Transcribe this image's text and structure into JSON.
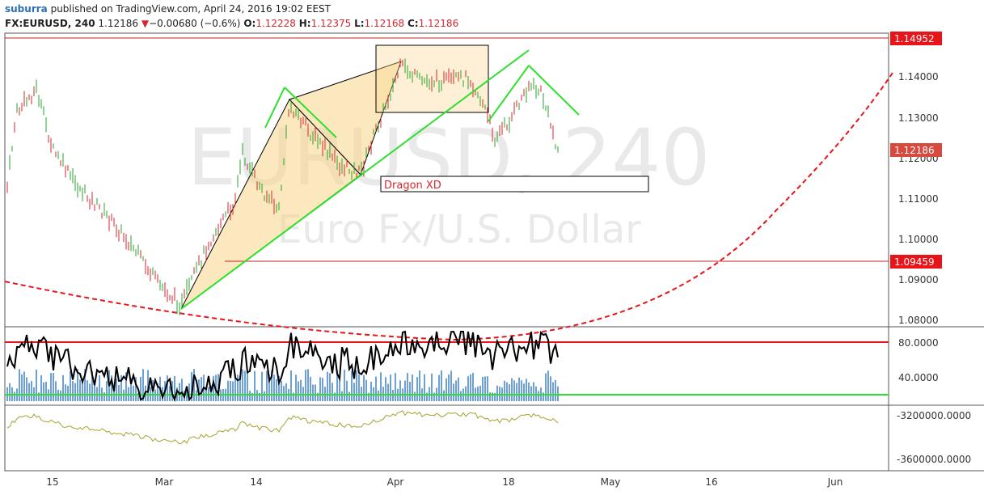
{
  "header": {
    "user": "suburra",
    "published": " published on TradingView.com, April 24, 2016 19:02 EEST",
    "symbol": "FX:EURUSD, 240",
    "last": "1.12186",
    "change": "−0.00680 (−0.6%)",
    "o_label": "O:",
    "o_val": "1.12228",
    "h_label": "H:",
    "h_val": "1.12375",
    "l_label": "L:",
    "l_val": "1.12168",
    "c_label": "C:",
    "c_val": "1.12186"
  },
  "watermark": {
    "title": "EURUSD, 240",
    "subtitle": "Euro Fx/U.S. Dollar"
  },
  "annotation": {
    "pattern_label": "Dragon XD"
  },
  "price_axis": {
    "ticks": [
      "1.14000",
      "1.13000",
      "1.12000",
      "1.11000",
      "1.10000",
      "1.09000",
      "1.08000"
    ],
    "tags": [
      {
        "label": "1.14952",
        "color": "#e8141a"
      },
      {
        "label": "1.12186",
        "color": "#d84a3e"
      },
      {
        "label": "1.09459",
        "color": "#e8141a"
      }
    ]
  },
  "osc_axis": {
    "ticks": [
      "80.0000",
      "40.0000"
    ]
  },
  "vol_axis": {
    "ticks": [
      "-3200000.0000",
      "-3600000.0000"
    ]
  },
  "time_axis": {
    "labels": [
      "15",
      "Mar",
      "14",
      "Apr",
      "18",
      "May",
      "16",
      "Jun"
    ]
  },
  "colors": {
    "up": "#26a426",
    "down": "#d7262d",
    "pattern_fill": "#f9d58a",
    "green_line": "#2ee02e",
    "osc_bars": "#6ea0d8",
    "osc_line": "#000000",
    "adl": "#a3a32a"
  }
}
